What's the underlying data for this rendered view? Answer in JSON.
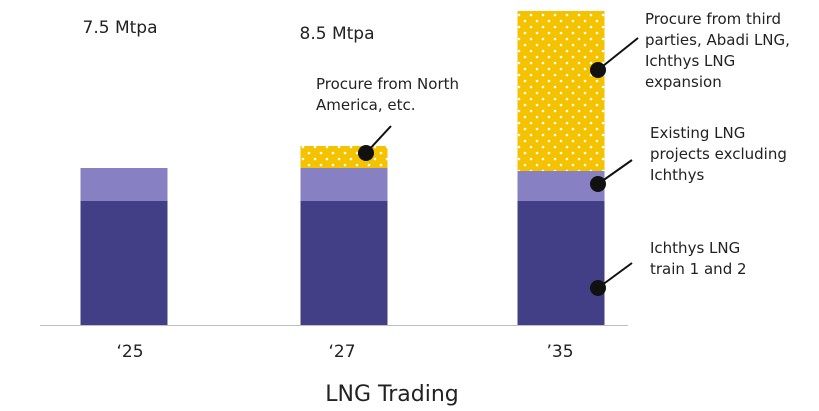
{
  "colors": {
    "ichthys": "#433f86",
    "existing": "#8780c2",
    "third_party": "#f5c200",
    "dots": "#ffffff",
    "marker": "#111111",
    "axis": "#bfbfbf"
  },
  "chart_data": {
    "type": "bar",
    "stacked": true,
    "title": "LNG Trading",
    "categories": [
      "‘25",
      "‘27",
      "’35"
    ],
    "totals": [
      "7.5 Mtpa",
      "8.5 Mtpa",
      ""
    ],
    "series": [
      {
        "name": "Ichthys LNG train 1 and 2",
        "label_lines": [
          "Ichthys LNG",
          "train 1 and 2"
        ],
        "color": "#433f86",
        "values": [
          124,
          124,
          124
        ]
      },
      {
        "name": "Existing LNG projects excluding Ichthys",
        "label_lines": [
          "Existing LNG",
          "projects excluding",
          "Ichthys"
        ],
        "color": "#8780c2",
        "values": [
          33,
          33,
          30
        ]
      },
      {
        "name": "Procure from North America, etc.",
        "label_lines": [
          "Procure from North",
          "America, etc."
        ],
        "color": "#f5c200",
        "pattern": "dots",
        "values": [
          0,
          22,
          0
        ]
      },
      {
        "name": "Procure from third parties, Abadi LNG, Ichthys LNG expansion",
        "label_lines": [
          "Procure from third",
          "parties, Abadi LNG,",
          "Ichthys LNG",
          "expansion"
        ],
        "color": "#f5c200",
        "pattern": "dots",
        "values": [
          0,
          0,
          160
        ]
      }
    ],
    "ylim": [
      0,
      320
    ],
    "grid": false,
    "legend": "annotations"
  }
}
